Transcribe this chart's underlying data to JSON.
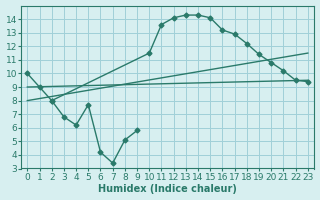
{
  "background_color": "#d7eff0",
  "grid_color": "#a0d0d8",
  "line_color": "#2a7a6a",
  "xlabel": "Humidex (Indice chaleur)",
  "ylim": [
    3,
    15
  ],
  "xlim": [
    -0.5,
    23.5
  ],
  "yticks": [
    3,
    4,
    5,
    6,
    7,
    8,
    9,
    10,
    11,
    12,
    13,
    14
  ],
  "xticks": [
    0,
    1,
    2,
    3,
    4,
    5,
    6,
    7,
    8,
    9,
    10,
    11,
    12,
    13,
    14,
    15,
    16,
    17,
    18,
    19,
    20,
    21,
    22,
    23
  ],
  "line1_x": [
    0,
    1,
    2,
    10,
    11,
    12,
    13,
    14,
    15,
    16,
    17,
    18,
    19,
    20,
    21,
    22,
    23
  ],
  "line1_y": [
    10.0,
    9.0,
    8.0,
    11.5,
    13.6,
    14.1,
    14.3,
    14.3,
    14.1,
    13.2,
    12.9,
    12.2,
    11.4,
    10.8,
    10.2,
    9.5,
    9.4
  ],
  "line2_x": [
    0,
    23
  ],
  "line2_y": [
    9.0,
    9.5
  ],
  "line3_x": [
    0,
    23
  ],
  "line3_y": [
    8.0,
    11.5
  ],
  "line4_x": [
    2,
    3,
    4,
    5,
    6,
    7,
    8,
    9
  ],
  "line4_y": [
    8.0,
    6.8,
    6.2,
    7.7,
    4.2,
    3.4,
    5.1,
    5.8
  ]
}
